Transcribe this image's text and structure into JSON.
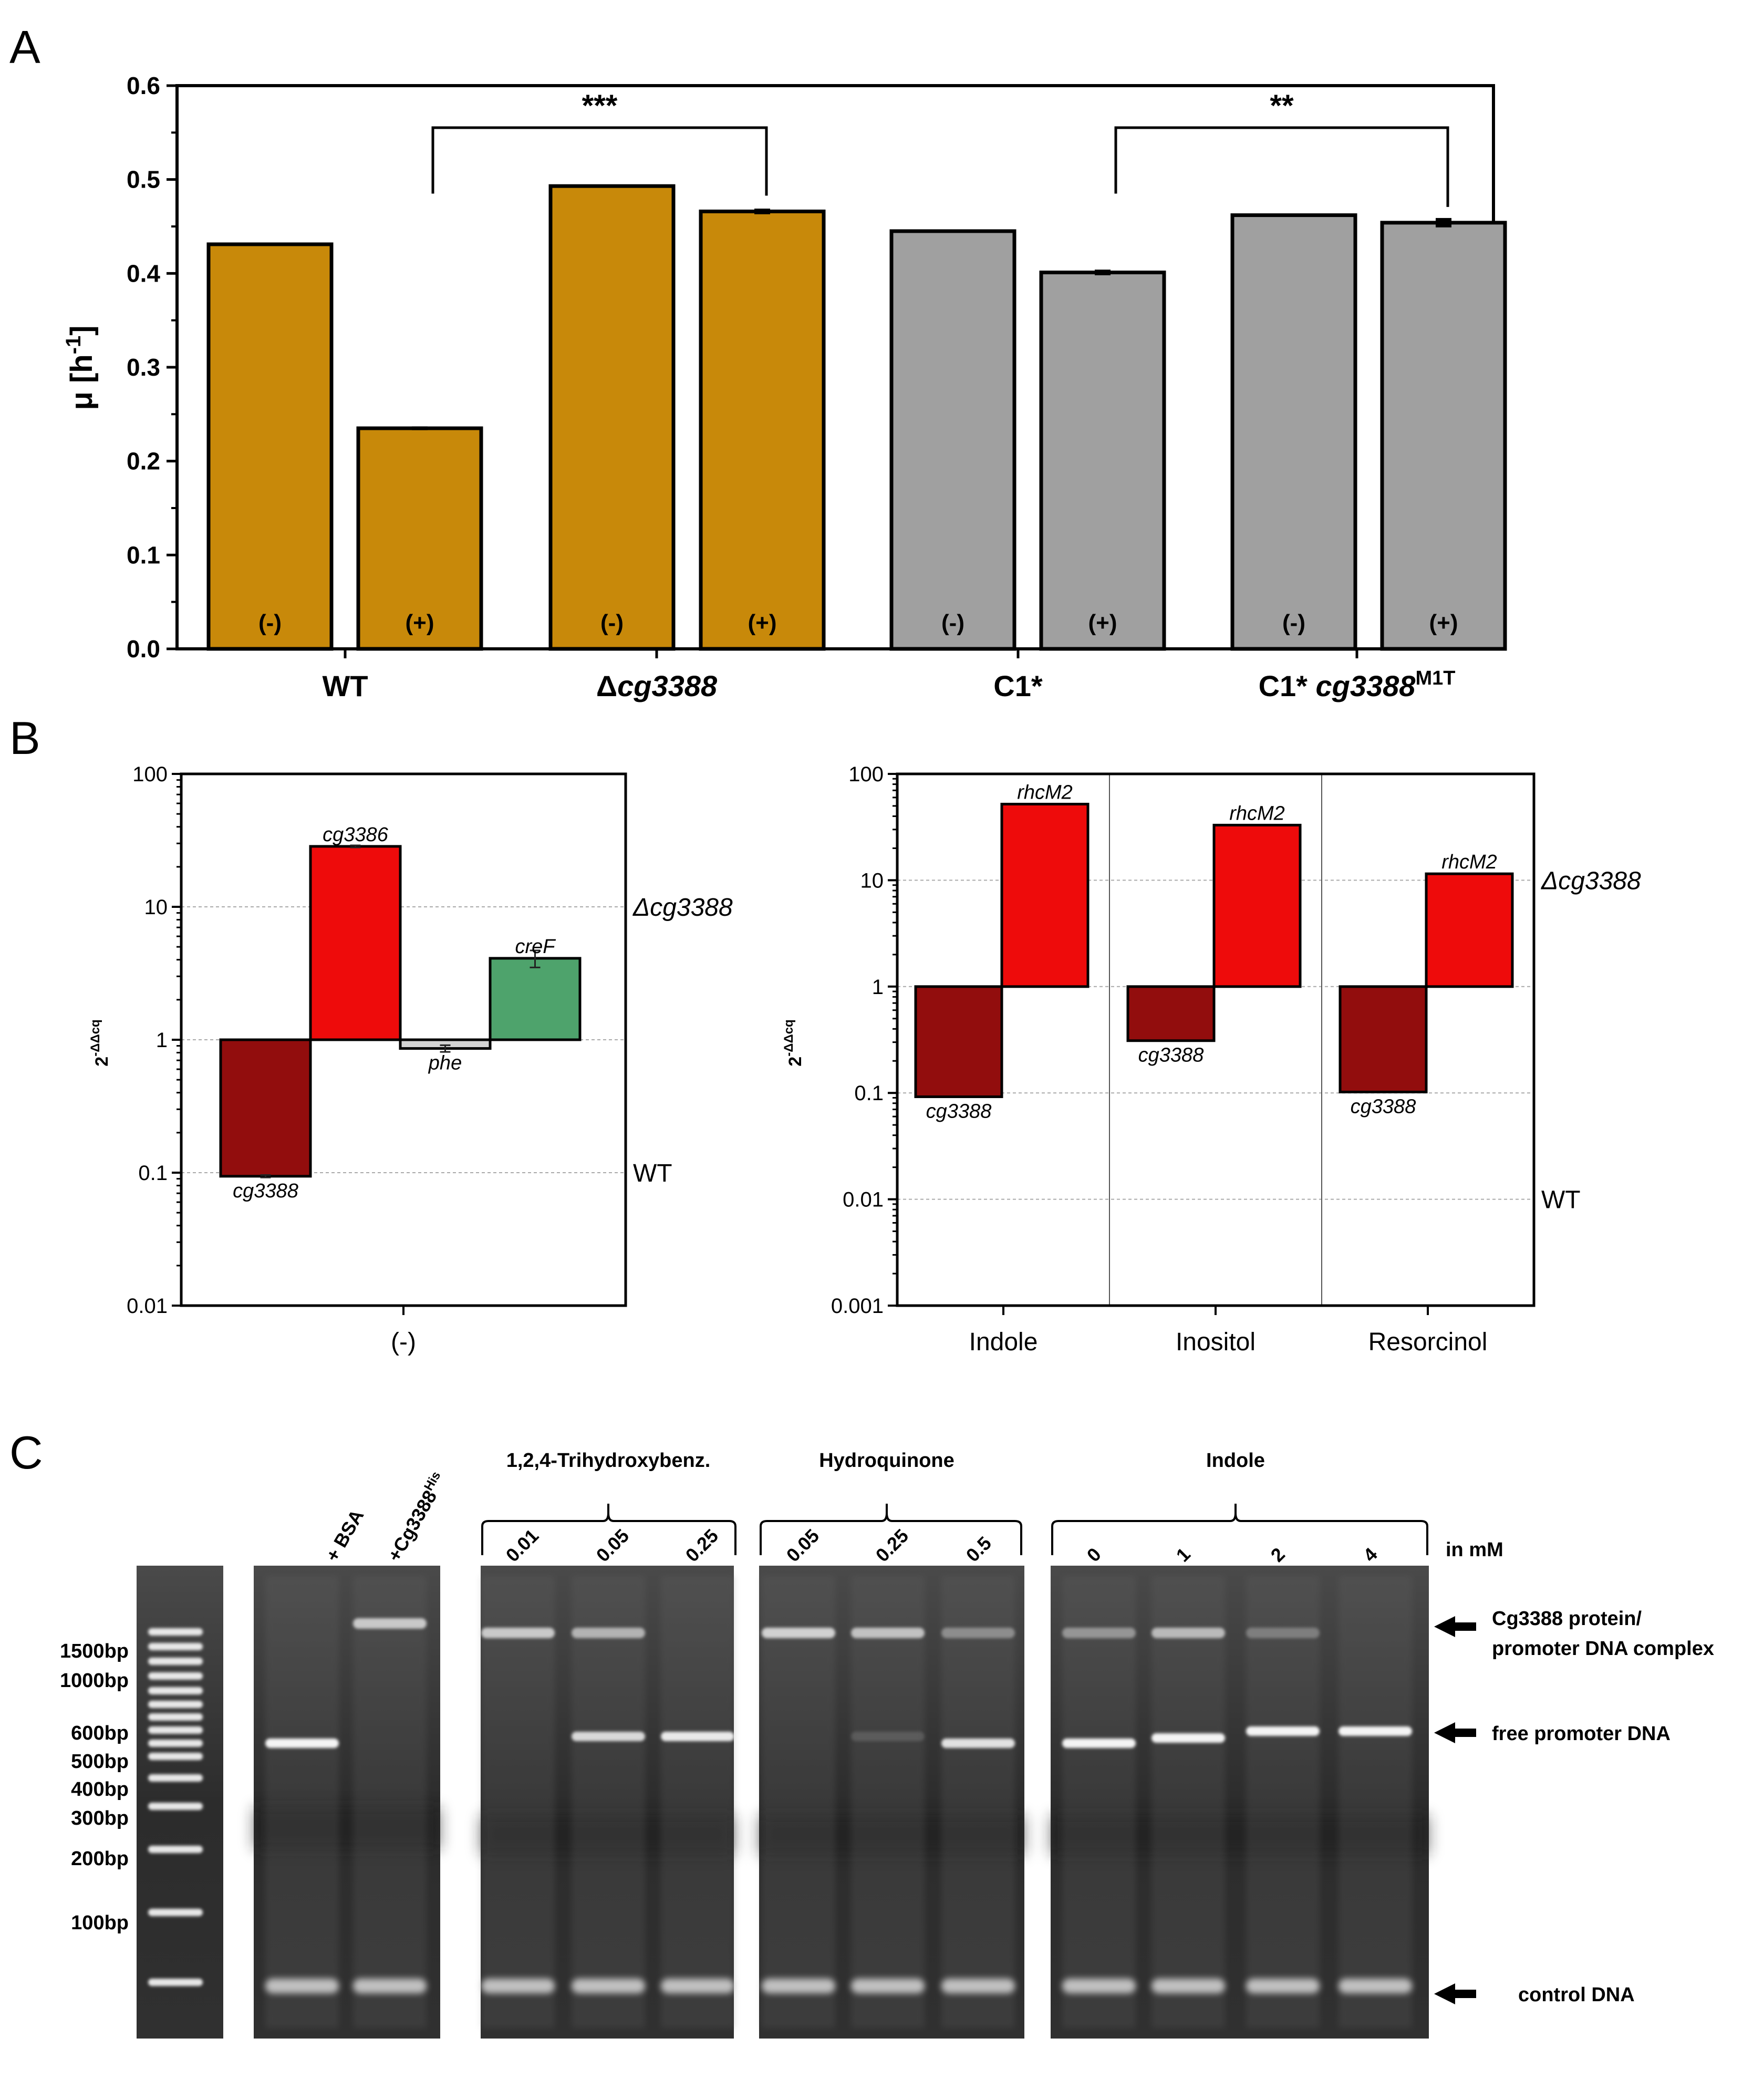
{
  "panels": {
    "a": "A",
    "b": "B",
    "c": "C"
  },
  "chart_data": [
    {
      "type": "bar",
      "panel": "A",
      "ylabel_main": "μ [h",
      "ylabel_sup": "-1",
      "ylabel_close": "]",
      "ylim": [
        0,
        0.6
      ],
      "yticks": [
        "0.0",
        "0.1",
        "0.2",
        "0.3",
        "0.4",
        "0.5",
        "0.6"
      ],
      "groups": [
        {
          "label": "WT",
          "sup": "",
          "italic": false,
          "prefix": ""
        },
        {
          "label": "cg3388",
          "sup": "",
          "italic": true,
          "prefix": "Δ"
        },
        {
          "label": "C1*",
          "sup": "",
          "italic": false,
          "prefix": ""
        },
        {
          "label": "cg3388",
          "sup": "M1T",
          "italic": true,
          "prefix": "C1* "
        }
      ],
      "bars": [
        {
          "group": 0,
          "cond": "(-)",
          "value": 0.431,
          "err": 0,
          "color": "#c8890a"
        },
        {
          "group": 0,
          "cond": "(+)",
          "value": 0.235,
          "err": 0.002,
          "color": "#c8890a"
        },
        {
          "group": 1,
          "cond": "(-)",
          "value": 0.493,
          "err": 0,
          "color": "#c8890a"
        },
        {
          "group": 1,
          "cond": "(+)",
          "value": 0.466,
          "err": 0.003,
          "color": "#c8890a"
        },
        {
          "group": 2,
          "cond": "(-)",
          "value": 0.445,
          "err": 0,
          "color": "#a0a0a0"
        },
        {
          "group": 2,
          "cond": "(+)",
          "value": 0.401,
          "err": 0.003,
          "color": "#a0a0a0"
        },
        {
          "group": 3,
          "cond": "(-)",
          "value": 0.462,
          "err": 0,
          "color": "#a0a0a0"
        },
        {
          "group": 3,
          "cond": "(+)",
          "value": 0.454,
          "err": 0.005,
          "color": "#a0a0a0"
        }
      ],
      "significance": [
        {
          "from_bar": 1,
          "to_bar": 3,
          "label": "***"
        },
        {
          "from_bar": 5,
          "to_bar": 7,
          "label": "**"
        }
      ]
    },
    {
      "type": "bar",
      "panel": "B-left",
      "scale": "log",
      "ylim": [
        0.01,
        100
      ],
      "yticks": [
        "0.01",
        "0.1",
        "1",
        "10",
        "100"
      ],
      "ylabel": "2",
      "ylabel_sup": "-ΔΔcq",
      "xlabel": "(-)",
      "right_labels": [
        {
          "text": "Δcg3388",
          "at": 10
        },
        {
          "text": "WT",
          "at": 0.1
        }
      ],
      "bars": [
        {
          "gene": "cg3388",
          "value": 0.094,
          "err": 0.002,
          "color": "#920d0d",
          "label_pos": "below"
        },
        {
          "gene": "cg3386",
          "value": 28.5,
          "err": 0.5,
          "color": "#ee0b0b",
          "label_pos": "above"
        },
        {
          "gene": "phe",
          "value": 0.86,
          "err": 0.05,
          "color": "#d4d4d4",
          "label_pos": "below"
        },
        {
          "gene": "creF",
          "value": 4.1,
          "err": 0.6,
          "color": "#4ea36c",
          "label_pos": "above"
        }
      ]
    },
    {
      "type": "bar",
      "panel": "B-right",
      "scale": "log",
      "ylim": [
        0.001,
        100
      ],
      "yticks": [
        "0.001",
        "0.01",
        "0.1",
        "1",
        "10",
        "100"
      ],
      "ylabel": "2",
      "ylabel_sup": "-ΔΔcq",
      "categories": [
        "Indole",
        "Inositol",
        "Resorcinol"
      ],
      "right_labels": [
        {
          "text": "Δcg3388",
          "at": 10
        },
        {
          "text": "WT",
          "at": 0.01
        }
      ],
      "series": [
        {
          "name": "cg3388",
          "values": [
            0.092,
            0.31,
            0.102
          ],
          "color": "#920d0d",
          "label_pos": "below"
        },
        {
          "name": "rhcM2",
          "values": [
            52,
            33,
            11.5
          ],
          "color": "#ee0b0b",
          "label_pos": "above"
        }
      ]
    }
  ],
  "gel": {
    "ladder": [
      "1500bp",
      "1000bp",
      "600bp",
      "500bp",
      "400bp",
      "300bp",
      "200bp",
      "100bp"
    ],
    "controls": [
      "+ BSA",
      "+Cg3388"
    ],
    "controls_sup": "His",
    "compounds": [
      {
        "name": "1,2,4-Trihydroxybenz.",
        "conc": [
          "0.01",
          "0.05",
          "0.25"
        ]
      },
      {
        "name": "Hydroquinone",
        "conc": [
          "0.05",
          "0.25",
          "0.5"
        ]
      },
      {
        "name": "Indole",
        "conc": [
          "0",
          "1",
          "2",
          "4"
        ]
      }
    ],
    "unit": "in mM",
    "annotations": [
      "Cg3388 protein/",
      "promoter DNA complex",
      "free promoter DNA",
      "control DNA"
    ]
  }
}
